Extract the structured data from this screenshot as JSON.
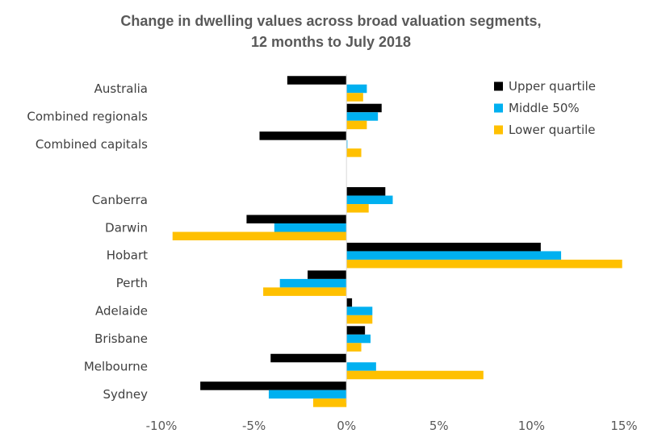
{
  "chart_data": {
    "type": "bar",
    "orientation": "horizontal",
    "title_lines": [
      "Change in dwelling values across broad valuation segments,",
      "12 months to July 2018"
    ],
    "categories": [
      "Australia",
      "Combined regionals",
      "Combined capitals",
      "",
      "Canberra",
      "Darwin",
      "Hobart",
      "Perth",
      "Adelaide",
      "Brisbane",
      "Melbourne",
      "Sydney"
    ],
    "series": [
      {
        "name": "Upper quartile",
        "color": "#000000",
        "values": [
          -3.2,
          1.9,
          -4.7,
          null,
          2.1,
          -5.4,
          10.5,
          -2.1,
          0.3,
          1.0,
          -4.1,
          -7.9
        ]
      },
      {
        "name": "Middle 50%",
        "color": "#00B0F0",
        "values": [
          1.1,
          1.7,
          0.05,
          null,
          2.5,
          -3.9,
          11.6,
          -3.6,
          1.4,
          1.3,
          1.6,
          -4.2
        ]
      },
      {
        "name": "Lower quartile",
        "color": "#FFC000",
        "values": [
          0.9,
          1.1,
          0.8,
          null,
          1.2,
          -9.4,
          14.9,
          -4.5,
          1.4,
          0.8,
          7.4,
          -1.8
        ]
      }
    ],
    "xlim": [
      -10,
      15
    ],
    "xticks": [
      -10,
      -5,
      0,
      5,
      10,
      15
    ],
    "xtick_labels": [
      "-10%",
      "-5%",
      "0%",
      "5%",
      "10%",
      "15%"
    ],
    "grid": false,
    "legend_position": "top-right"
  }
}
